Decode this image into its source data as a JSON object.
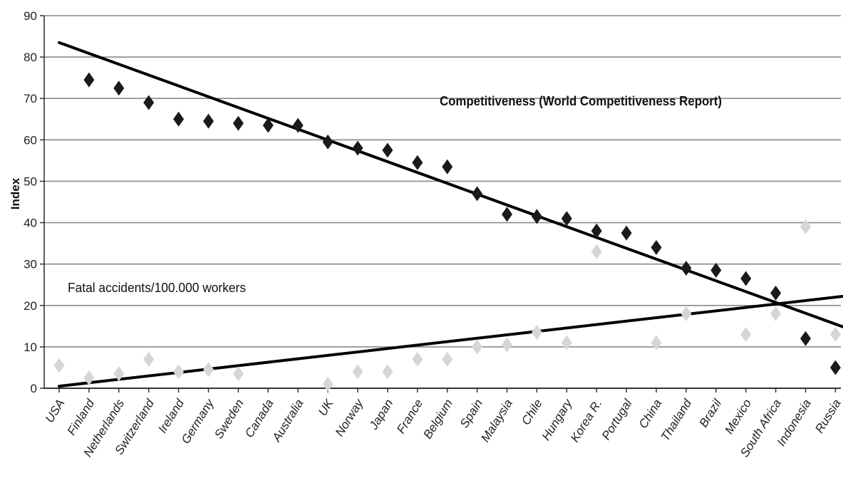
{
  "chart_data": {
    "type": "scatter",
    "title": "",
    "xlabel": "",
    "ylabel": "Index",
    "ylim": [
      0,
      90
    ],
    "yticks": [
      0,
      10,
      20,
      30,
      40,
      50,
      60,
      70,
      80,
      90
    ],
    "grid": "horizontal",
    "legend": "none",
    "categories": [
      "USA",
      "Finland",
      "Netherlands",
      "Switzerland",
      "Ireland",
      "Germany",
      "Sweden",
      "Canada",
      "Australia",
      "UK",
      "Norway",
      "Japan",
      "France",
      "Belgium",
      "Spain",
      "Malaysia",
      "Chile",
      "Hungary",
      "Korea R.",
      "Portugal",
      "China",
      "Thailand",
      "Brazil",
      "Mexico",
      "South Africa",
      "Indonesia",
      "Russia"
    ],
    "series": [
      {
        "marker": "diamond",
        "color": "#1a1a1a",
        "values": [
          null,
          74.5,
          72.5,
          69,
          65,
          64.5,
          64,
          63.5,
          63.5,
          59.5,
          58,
          57.5,
          54.5,
          53.5,
          47,
          42,
          41.5,
          41,
          38,
          37.5,
          34,
          29,
          28.5,
          26.5,
          23,
          12,
          5
        ]
      },
      {
        "marker": "diamond",
        "color": "#d6d6d6",
        "values": [
          5.5,
          2.5,
          3.5,
          7,
          4,
          4.5,
          3.5,
          null,
          null,
          1,
          4,
          4,
          7,
          7,
          10,
          10.5,
          13.5,
          11,
          33,
          null,
          11,
          18,
          null,
          13,
          18,
          39,
          13
        ]
      }
    ],
    "trendlines": [
      {
        "from": [
          0,
          83.5
        ],
        "to": [
          26,
          15.5
        ],
        "color": "#000000"
      },
      {
        "from": [
          0,
          0.5
        ],
        "to": [
          26,
          22
        ],
        "color": "#000000"
      }
    ],
    "annotations": [
      {
        "text": "Competitiveness (World Competitiveness Report)",
        "weight": "bold"
      },
      {
        "text": "Fatal accidents/100.000 workers",
        "weight": "normal"
      }
    ]
  }
}
